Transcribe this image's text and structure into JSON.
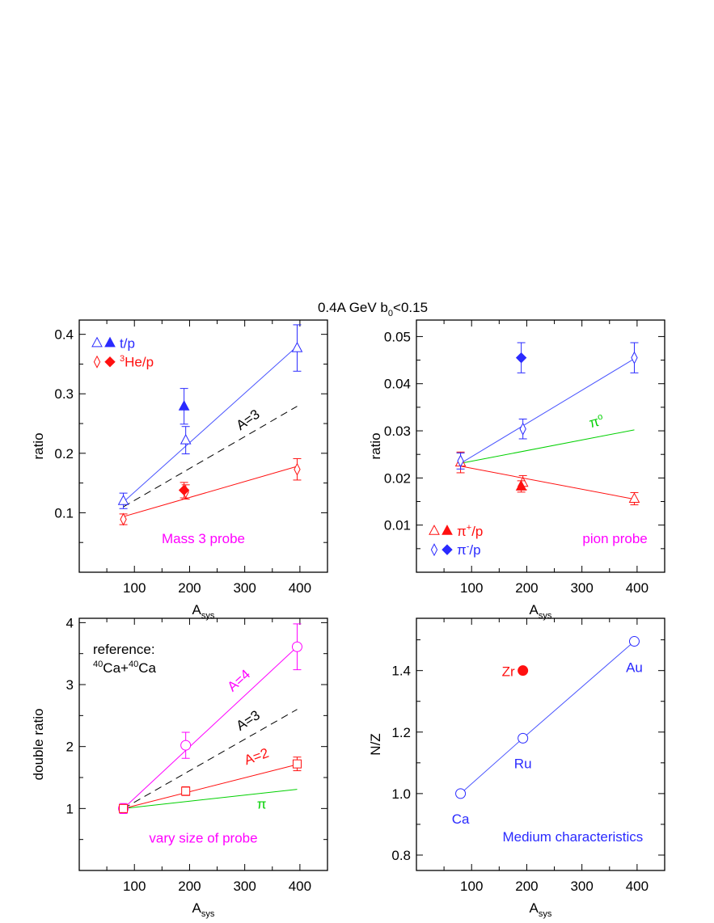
{
  "title": {
    "parts": [
      {
        "t": "0.4A GeV   b"
      },
      {
        "sub": "0"
      },
      {
        "t": "<0.15"
      }
    ]
  },
  "colors": {
    "blue": "#2a2aff",
    "blue_line": "#4a55ff",
    "red": "#ff1010",
    "magenta": "#ff00ff",
    "green": "#00d000",
    "black": "#000000"
  },
  "chart_data": [
    {
      "type": "scatter",
      "xlabel": {
        "main": "A",
        "sub": "sys"
      },
      "ylabel": "ratio",
      "xlim": [
        0,
        450
      ],
      "ylim": [
        0,
        0.424
      ],
      "xticks": [
        100,
        200,
        300,
        400
      ],
      "xtick_labels": [
        "100",
        "200",
        "300",
        "400"
      ],
      "xminor": [
        50,
        150,
        250,
        350
      ],
      "yticks": [
        0.1,
        0.2,
        0.3,
        0.4
      ],
      "ytick_labels": [
        "0.1",
        "0.2",
        "0.3",
        "0.4"
      ],
      "yminor": [
        0.05,
        0.15,
        0.25,
        0.35
      ],
      "series": [
        {
          "name": "t/p",
          "marker": "open-triangle",
          "color": "blue",
          "x": [
            80,
            193,
            395
          ],
          "y": [
            0.12,
            0.222,
            0.377
          ],
          "err": [
            0.013,
            0.023,
            0.039
          ]
        },
        {
          "marker": "filled-triangle",
          "color": "blue",
          "x": [
            190
          ],
          "y": [
            0.279
          ],
          "err": [
            0.03
          ]
        },
        {
          "name": "3He/p",
          "marker": "open-diamond",
          "color": "red",
          "x": [
            80,
            193,
            395
          ],
          "y": [
            0.089,
            0.135,
            0.173
          ],
          "err": [
            0.009,
            0.012,
            0.018
          ]
        },
        {
          "marker": "filled-diamond",
          "color": "red",
          "x": [
            190
          ],
          "y": [
            0.138
          ],
          "err": [
            0.013
          ]
        }
      ],
      "lines": [
        {
          "color": "blue_line",
          "style": "solid",
          "x": [
            80,
            395
          ],
          "y": [
            0.118,
            0.38
          ]
        },
        {
          "color": "red",
          "style": "solid",
          "x": [
            80,
            395
          ],
          "y": [
            0.0935,
            0.178
          ]
        },
        {
          "color": "black",
          "style": "dashed",
          "x": [
            80,
            395
          ],
          "y": [
            0.11,
            0.279
          ]
        }
      ],
      "legend": [
        {
          "markers": [
            "open-triangle",
            "filled-triangle"
          ],
          "color": "blue",
          "parts": [
            {
              "t": "t/p"
            }
          ]
        },
        {
          "markers": [
            "open-diamond",
            "filled-diamond"
          ],
          "color": "red",
          "parts": [
            {
              "sup": "3"
            },
            {
              "t": "He/p"
            }
          ]
        }
      ],
      "annotations": [
        {
          "text": "A=3",
          "color": "black"
        },
        {
          "text": "Mass 3 probe",
          "color": "magenta"
        }
      ]
    },
    {
      "type": "scatter",
      "xlabel": {
        "main": "A",
        "sub": "sys"
      },
      "ylabel": "ratio",
      "xlim": [
        0,
        450
      ],
      "ylim": [
        0,
        0.0535
      ],
      "xticks": [
        100,
        200,
        300,
        400
      ],
      "xtick_labels": [
        "100",
        "200",
        "300",
        "400"
      ],
      "xminor": [
        50,
        150,
        250,
        350
      ],
      "yticks": [
        0.01,
        0.02,
        0.03,
        0.04,
        0.05
      ],
      "ytick_labels": [
        "0.01",
        "0.02",
        "0.03",
        "0.04",
        "0.05"
      ],
      "yminor": [
        0.005,
        0.015,
        0.025,
        0.035,
        0.045
      ],
      "series": [
        {
          "name": "π+/p",
          "marker": "open-triangle",
          "color": "red",
          "x": [
            80,
            193,
            395
          ],
          "y": [
            0.0233,
            0.019,
            0.0156
          ],
          "err": [
            0.0022,
            0.0015,
            0.0013
          ]
        },
        {
          "marker": "filled-triangle",
          "color": "red",
          "x": [
            190
          ],
          "y": [
            0.0182
          ],
          "err": [
            0.0012
          ]
        },
        {
          "name": "π-/p",
          "marker": "open-diamond",
          "color": "blue",
          "x": [
            80,
            193,
            395
          ],
          "y": [
            0.0236,
            0.0304,
            0.0455
          ],
          "err": [
            0.0017,
            0.0021,
            0.0032
          ]
        },
        {
          "marker": "filled-diamond",
          "color": "blue",
          "x": [
            190
          ],
          "y": [
            0.0455
          ],
          "err": [
            0.0032
          ]
        }
      ],
      "lines": [
        {
          "color": "blue_line",
          "style": "solid",
          "x": [
            80,
            395
          ],
          "y": [
            0.0231,
            0.0453
          ]
        },
        {
          "color": "green",
          "style": "solid",
          "x": [
            80,
            395
          ],
          "y": [
            0.0231,
            0.0302
          ]
        },
        {
          "color": "red",
          "style": "solid",
          "x": [
            80,
            395
          ],
          "y": [
            0.0225,
            0.0155
          ]
        }
      ],
      "legend": [
        {
          "markers": [
            "open-triangle",
            "filled-triangle"
          ],
          "color": "red",
          "parts": [
            {
              "t": "π"
            },
            {
              "sup": "+"
            },
            {
              "t": "/p"
            }
          ]
        },
        {
          "markers": [
            "open-diamond",
            "filled-diamond"
          ],
          "color": "blue",
          "parts": [
            {
              "t": "π"
            },
            {
              "sup": "-"
            },
            {
              "t": "/p"
            }
          ]
        }
      ],
      "annotations": [
        {
          "text": "π",
          "sup": "o",
          "color": "green"
        },
        {
          "text": "pion probe",
          "color": "magenta"
        }
      ]
    },
    {
      "type": "scatter",
      "xlabel": {
        "main": "A",
        "sub": "sys"
      },
      "ylabel": "double ratio",
      "xlim": [
        0,
        450
      ],
      "ylim": [
        0,
        4.07
      ],
      "xticks": [
        100,
        200,
        300,
        400
      ],
      "xtick_labels": [
        "100",
        "200",
        "300",
        "400"
      ],
      "xminor": [
        50,
        150,
        250,
        350
      ],
      "yticks": [
        1,
        2,
        3,
        4
      ],
      "ytick_labels": [
        "1",
        "2",
        "3",
        "4"
      ],
      "yminor": [
        0.5,
        1.5,
        2.5,
        3.5
      ],
      "series": [
        {
          "name": "A=4",
          "marker": "open-circle",
          "color": "magenta",
          "x": [
            80,
            193,
            395
          ],
          "y": [
            1.0,
            2.02,
            3.61
          ],
          "err": [
            0.08,
            0.21,
            0.37
          ]
        },
        {
          "name": "A=2",
          "marker": "open-square",
          "color": "red",
          "x": [
            80,
            193,
            395
          ],
          "y": [
            1.0,
            1.28,
            1.72
          ],
          "err": [
            0.06,
            0.07,
            0.11
          ]
        }
      ],
      "lines": [
        {
          "color": "magenta",
          "style": "solid",
          "x": [
            80,
            395
          ],
          "y": [
            1.0,
            3.61
          ]
        },
        {
          "color": "black",
          "style": "dashed",
          "x": [
            80,
            395
          ],
          "y": [
            1.0,
            2.6
          ]
        },
        {
          "color": "red",
          "style": "solid",
          "x": [
            80,
            395
          ],
          "y": [
            1.0,
            1.71
          ]
        },
        {
          "color": "green",
          "style": "solid",
          "x": [
            80,
            395
          ],
          "y": [
            1.0,
            1.31
          ]
        }
      ],
      "legend": [],
      "reference": {
        "line1": "reference:",
        "line2": [
          {
            "sup": "40"
          },
          {
            "t": "Ca+"
          },
          {
            "sup": "40"
          },
          {
            "t": "Ca"
          }
        ]
      },
      "annotations": [
        {
          "text": "A=4",
          "color": "magenta"
        },
        {
          "text": "A=3",
          "color": "black"
        },
        {
          "text": "A=2",
          "color": "red"
        },
        {
          "text": "π",
          "color": "green"
        },
        {
          "text": "vary size of probe",
          "color": "magenta"
        }
      ]
    },
    {
      "type": "scatter",
      "xlabel": {
        "main": "A",
        "sub": "sys"
      },
      "ylabel": "N/Z",
      "xlim": [
        0,
        450
      ],
      "ylim": [
        0.75,
        1.57
      ],
      "xticks": [
        100,
        200,
        300,
        400
      ],
      "xtick_labels": [
        "100",
        "200",
        "300",
        "400"
      ],
      "xminor": [
        50,
        150,
        250,
        350
      ],
      "yticks": [
        0.8,
        1.0,
        1.2,
        1.4
      ],
      "ytick_labels": [
        "0.8",
        "1.0",
        "1.2",
        "1.4"
      ],
      "yminor": [
        0.9,
        1.1,
        1.3,
        1.5
      ],
      "series": [
        {
          "marker": "open-circle",
          "color": "blue",
          "x": [
            80,
            193,
            395
          ],
          "y": [
            1.0,
            1.18,
            1.495
          ],
          "labels": [
            "Ca",
            "Ru",
            "Au"
          ]
        },
        {
          "marker": "filled-circle",
          "color": "red",
          "x": [
            193
          ],
          "y": [
            1.4
          ],
          "labels": [
            "Zr"
          ]
        }
      ],
      "lines": [
        {
          "color": "blue_line",
          "style": "solid",
          "x": [
            80,
            193,
            395
          ],
          "y": [
            1.0,
            1.18,
            1.495
          ]
        }
      ],
      "legend": [],
      "annotations": [
        {
          "text": "Medium characteristics",
          "color": "blue"
        }
      ]
    }
  ]
}
